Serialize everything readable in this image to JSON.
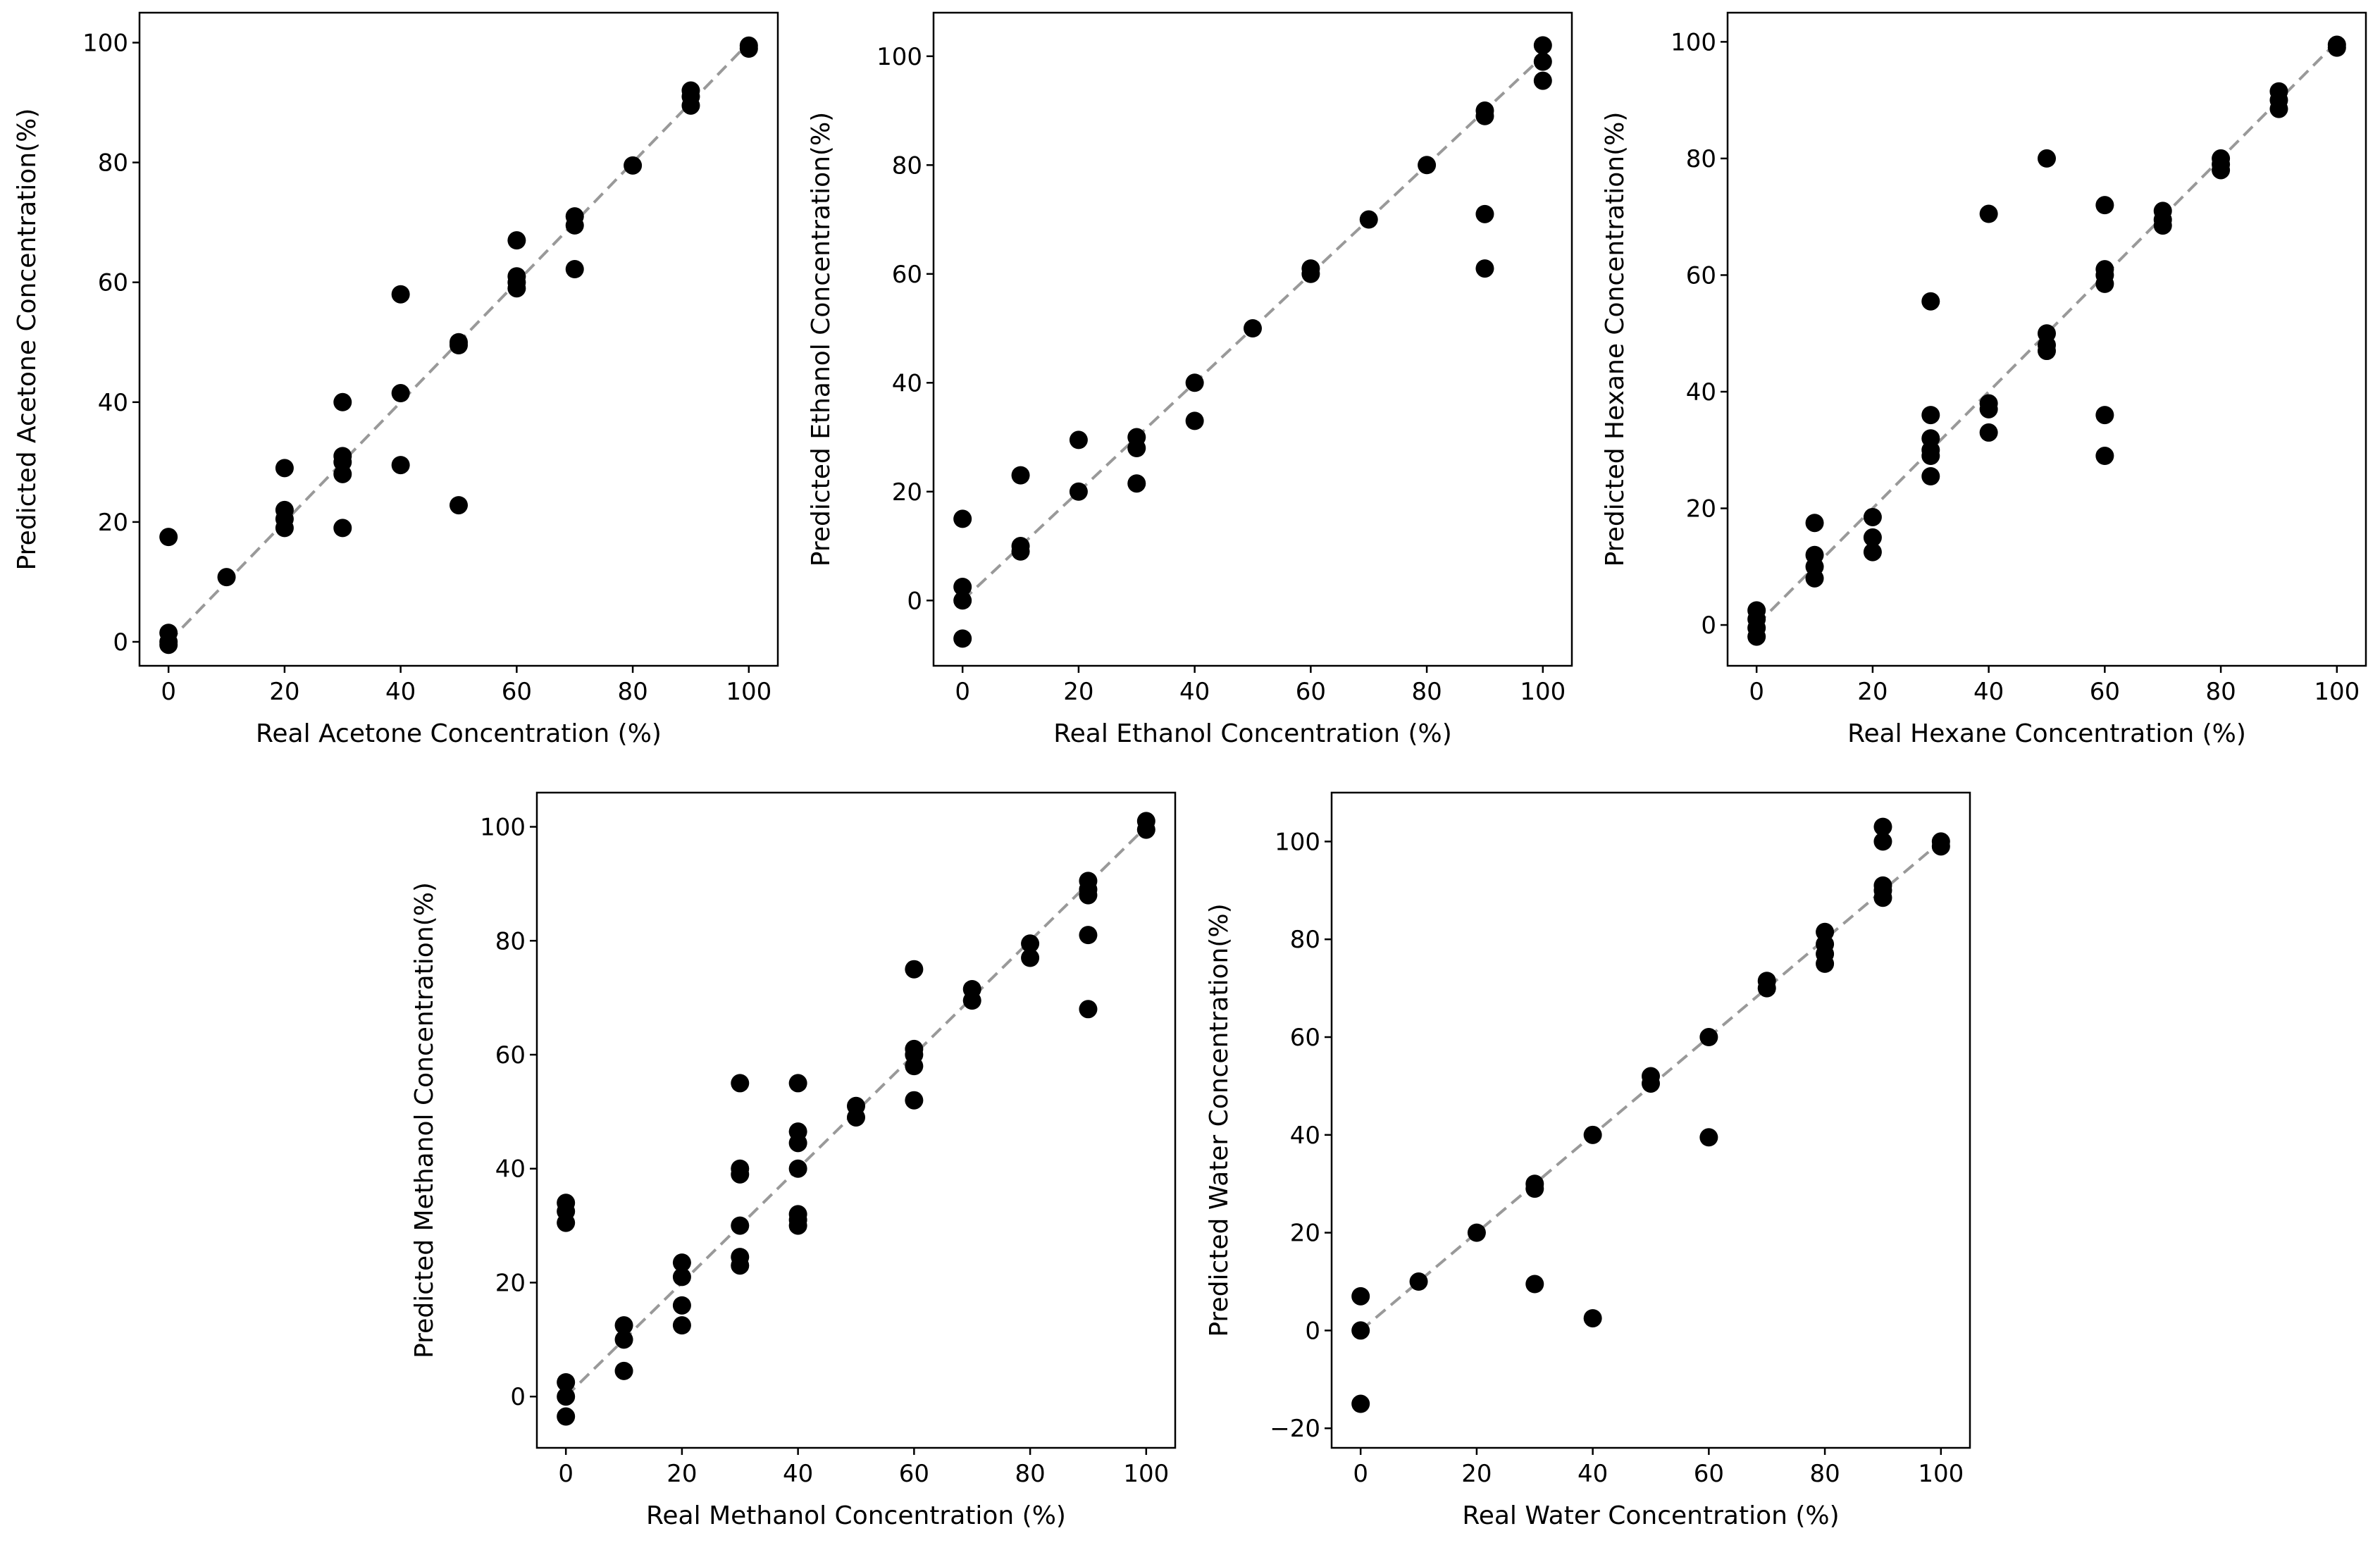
{
  "chart_data": [
    {
      "type": "scatter",
      "xlabel": "Real Acetone Concentration (%)",
      "ylabel": "Predicted Acetone Concentration(%)",
      "xlim": [
        -5,
        105
      ],
      "ylim": [
        -4,
        105
      ],
      "xticks": [
        0,
        20,
        40,
        60,
        80,
        100
      ],
      "yticks": [
        0,
        20,
        40,
        60,
        80,
        100
      ],
      "reference_line": {
        "style": "dashed",
        "color": "#999999",
        "from": [
          0,
          0
        ],
        "to": [
          100,
          100
        ]
      },
      "marker_color": "#000000",
      "points": [
        [
          0,
          17.5
        ],
        [
          0,
          1.5
        ],
        [
          0,
          0
        ],
        [
          0,
          -0.5
        ],
        [
          10,
          10.8
        ],
        [
          20,
          29
        ],
        [
          20,
          22
        ],
        [
          20,
          20.5
        ],
        [
          20,
          19
        ],
        [
          30,
          40
        ],
        [
          30,
          31
        ],
        [
          30,
          30
        ],
        [
          30,
          28
        ],
        [
          30,
          19
        ],
        [
          40,
          58
        ],
        [
          40,
          41.5
        ],
        [
          40,
          29.5
        ],
        [
          50,
          50
        ],
        [
          50,
          49.5
        ],
        [
          50,
          22.8
        ],
        [
          60,
          67
        ],
        [
          60,
          61
        ],
        [
          60,
          60
        ],
        [
          60,
          59
        ],
        [
          70,
          71
        ],
        [
          70,
          69.5
        ],
        [
          70,
          62.2
        ],
        [
          80,
          79.5
        ],
        [
          90,
          92
        ],
        [
          90,
          91
        ],
        [
          90,
          89.5
        ],
        [
          100,
          99.5
        ],
        [
          100,
          99
        ]
      ]
    },
    {
      "type": "scatter",
      "xlabel": "Real Ethanol Concentration (%)",
      "ylabel": "Predicted Ethanol Concentration(%)",
      "xlim": [
        -5,
        105
      ],
      "ylim": [
        -12,
        108
      ],
      "xticks": [
        0,
        20,
        40,
        60,
        80,
        100
      ],
      "yticks": [
        0,
        20,
        40,
        60,
        80,
        100
      ],
      "reference_line": {
        "style": "dashed",
        "color": "#999999",
        "from": [
          0,
          0
        ],
        "to": [
          100,
          100
        ]
      },
      "marker_color": "#000000",
      "points": [
        [
          0,
          15
        ],
        [
          0,
          2.5
        ],
        [
          0,
          0
        ],
        [
          0,
          -7
        ],
        [
          10,
          23
        ],
        [
          10,
          10
        ],
        [
          10,
          9
        ],
        [
          20,
          29.5
        ],
        [
          20,
          20
        ],
        [
          30,
          30
        ],
        [
          30,
          28
        ],
        [
          30,
          21.5
        ],
        [
          40,
          40
        ],
        [
          40,
          33
        ],
        [
          50,
          50
        ],
        [
          60,
          61
        ],
        [
          60,
          60
        ],
        [
          70,
          70
        ],
        [
          80,
          80
        ],
        [
          90,
          90
        ],
        [
          90,
          89
        ],
        [
          90,
          71
        ],
        [
          90,
          61
        ],
        [
          100,
          102
        ],
        [
          100,
          99
        ],
        [
          100,
          95.5
        ]
      ]
    },
    {
      "type": "scatter",
      "xlabel": "Real Hexane Concentration (%)",
      "ylabel": "Predicted Hexane Concentration(%)",
      "xlim": [
        -5,
        105
      ],
      "ylim": [
        -7,
        105
      ],
      "xticks": [
        0,
        20,
        40,
        60,
        80,
        100
      ],
      "yticks": [
        0,
        20,
        40,
        60,
        80,
        100
      ],
      "reference_line": {
        "style": "dashed",
        "color": "#999999",
        "from": [
          0,
          0
        ],
        "to": [
          100,
          100
        ]
      },
      "marker_color": "#000000",
      "points": [
        [
          0,
          2.5
        ],
        [
          0,
          1
        ],
        [
          0,
          -0.5
        ],
        [
          0,
          -2
        ],
        [
          10,
          17.5
        ],
        [
          10,
          12
        ],
        [
          10,
          10
        ],
        [
          10,
          8
        ],
        [
          20,
          18.5
        ],
        [
          20,
          15
        ],
        [
          20,
          12.5
        ],
        [
          30,
          55.5
        ],
        [
          30,
          36
        ],
        [
          30,
          32
        ],
        [
          30,
          30
        ],
        [
          30,
          29
        ],
        [
          30,
          25.5
        ],
        [
          40,
          70.5
        ],
        [
          40,
          38
        ],
        [
          40,
          37
        ],
        [
          40,
          33
        ],
        [
          50,
          80
        ],
        [
          50,
          50
        ],
        [
          50,
          48
        ],
        [
          50,
          47
        ],
        [
          60,
          72
        ],
        [
          60,
          61
        ],
        [
          60,
          60
        ],
        [
          60,
          58.5
        ],
        [
          60,
          36
        ],
        [
          60,
          29
        ],
        [
          70,
          71
        ],
        [
          70,
          69.5
        ],
        [
          70,
          68.5
        ],
        [
          80,
          80
        ],
        [
          80,
          79
        ],
        [
          80,
          78
        ],
        [
          90,
          91.5
        ],
        [
          90,
          90
        ],
        [
          90,
          88.5
        ],
        [
          100,
          99.5
        ],
        [
          100,
          99
        ]
      ]
    },
    {
      "type": "scatter",
      "xlabel": "Real Methanol Concentration (%)",
      "ylabel": "Predicted Methanol Concentration(%)",
      "xlim": [
        -5,
        105
      ],
      "ylim": [
        -9,
        106
      ],
      "xticks": [
        0,
        20,
        40,
        60,
        80,
        100
      ],
      "yticks": [
        0,
        20,
        40,
        60,
        80,
        100
      ],
      "reference_line": {
        "style": "dashed",
        "color": "#999999",
        "from": [
          0,
          0
        ],
        "to": [
          100,
          100
        ]
      },
      "marker_color": "#000000",
      "points": [
        [
          0,
          34
        ],
        [
          0,
          32.5
        ],
        [
          0,
          30.5
        ],
        [
          0,
          2.5
        ],
        [
          0,
          0
        ],
        [
          0,
          -3.5
        ],
        [
          10,
          12.5
        ],
        [
          10,
          10
        ],
        [
          10,
          4.5
        ],
        [
          20,
          23.5
        ],
        [
          20,
          21
        ],
        [
          20,
          16
        ],
        [
          20,
          12.5
        ],
        [
          30,
          55
        ],
        [
          30,
          40
        ],
        [
          30,
          39
        ],
        [
          30,
          30
        ],
        [
          30,
          24.5
        ],
        [
          30,
          23
        ],
        [
          40,
          55
        ],
        [
          40,
          46.5
        ],
        [
          40,
          44.5
        ],
        [
          40,
          40
        ],
        [
          40,
          32
        ],
        [
          40,
          31
        ],
        [
          40,
          30
        ],
        [
          50,
          51
        ],
        [
          50,
          49
        ],
        [
          60,
          75
        ],
        [
          60,
          61
        ],
        [
          60,
          60
        ],
        [
          60,
          58
        ],
        [
          60,
          52
        ],
        [
          70,
          71.5
        ],
        [
          70,
          69.5
        ],
        [
          80,
          79.5
        ],
        [
          80,
          77
        ],
        [
          90,
          90.5
        ],
        [
          90,
          89
        ],
        [
          90,
          88
        ],
        [
          90,
          81
        ],
        [
          90,
          68
        ],
        [
          100,
          101
        ],
        [
          100,
          99.5
        ]
      ]
    },
    {
      "type": "scatter",
      "xlabel": "Real Water Concentration (%)",
      "ylabel": "Predicted Water Concentration(%)",
      "xlim": [
        -5,
        105
      ],
      "ylim": [
        -24,
        110
      ],
      "xticks": [
        0,
        20,
        40,
        60,
        80,
        100
      ],
      "yticks": [
        -20,
        0,
        20,
        40,
        60,
        80,
        100
      ],
      "reference_line": {
        "style": "dashed",
        "color": "#999999",
        "from": [
          0,
          0
        ],
        "to": [
          100,
          100
        ]
      },
      "marker_color": "#000000",
      "points": [
        [
          0,
          7
        ],
        [
          0,
          0
        ],
        [
          0,
          -15
        ],
        [
          10,
          10
        ],
        [
          20,
          20
        ],
        [
          30,
          30
        ],
        [
          30,
          29
        ],
        [
          30,
          9.5
        ],
        [
          40,
          40
        ],
        [
          40,
          2.5
        ],
        [
          50,
          52
        ],
        [
          50,
          50.5
        ],
        [
          60,
          60
        ],
        [
          60,
          39.5
        ],
        [
          70,
          71.5
        ],
        [
          70,
          70
        ],
        [
          80,
          81.5
        ],
        [
          80,
          79
        ],
        [
          80,
          77
        ],
        [
          80,
          75
        ],
        [
          90,
          103
        ],
        [
          90,
          100
        ],
        [
          90,
          91
        ],
        [
          90,
          90
        ],
        [
          90,
          88.5
        ],
        [
          100,
          100
        ],
        [
          100,
          99
        ]
      ]
    }
  ]
}
